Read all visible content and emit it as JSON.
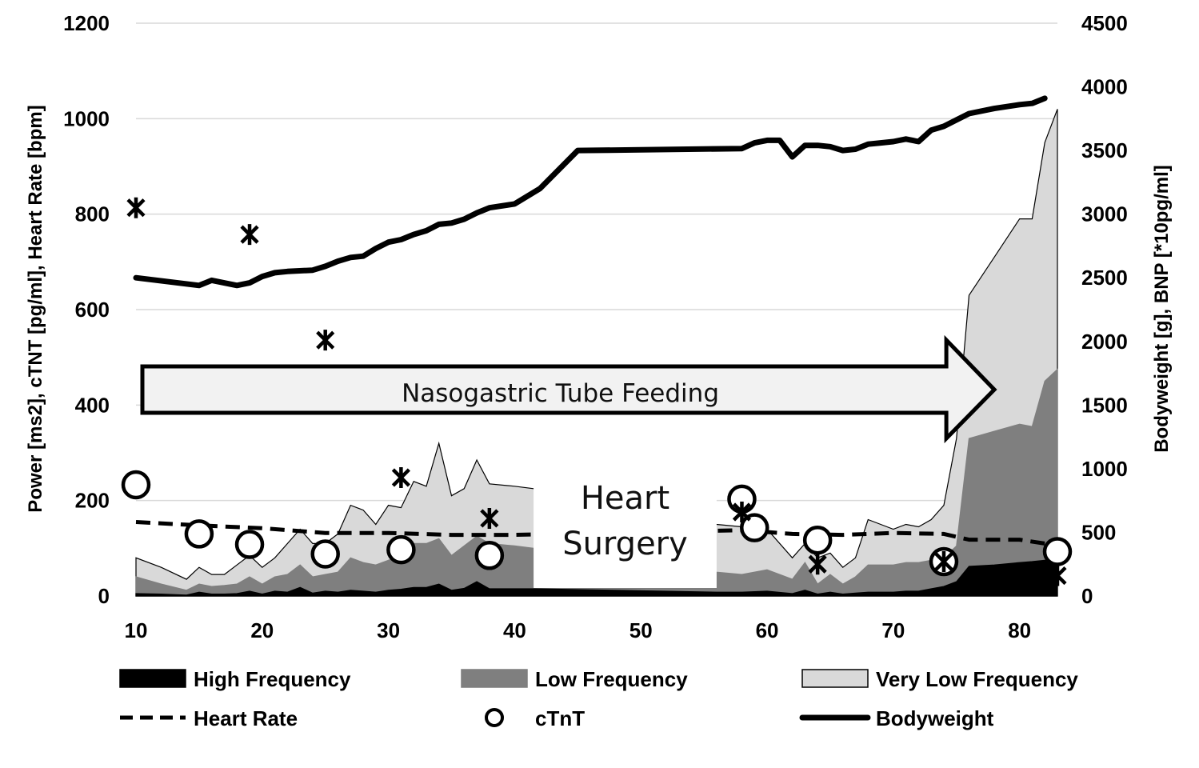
{
  "chart_data": {
    "type": "area",
    "title": "",
    "xlabel": "",
    "ylabel": "Power [ms2], cTNT [pg/ml], Heart Rate [bpm]",
    "ylabel_right": "Bodyweight [g], BNP [*10pg/ml]",
    "xlim": [
      10,
      83
    ],
    "xticks": [
      "10",
      "20",
      "30",
      "40",
      "50",
      "60",
      "70",
      "80"
    ],
    "ylim": [
      0,
      1200
    ],
    "yticks": [
      "0",
      "200",
      "400",
      "600",
      "800",
      "1000",
      "1200"
    ],
    "ylim_right": [
      0,
      4500
    ],
    "yticks_right": [
      "0",
      "500",
      "1000",
      "1500",
      "2000",
      "2500",
      "3000",
      "3500",
      "4000",
      "4500"
    ],
    "grid": true,
    "legend_position": "bottom",
    "annotations": {
      "arrow_label": "Nasogastric Tube Feeding",
      "arrow_start_x": 10,
      "arrow_end_x": 78,
      "surgery_line1": "Heart",
      "surgery_line2": "Surgery",
      "surgery_x_range": [
        41.5,
        56
      ]
    },
    "series": [
      {
        "name": "Very Low Frequency",
        "axis": "left",
        "style": "area",
        "color": "#d9d9d9",
        "x": [
          10,
          12,
          14,
          15,
          16,
          17,
          18,
          19,
          20,
          21,
          22,
          23,
          24,
          25,
          26,
          27,
          28,
          29,
          30,
          31,
          32,
          33,
          34,
          35,
          36,
          37,
          38,
          40,
          41.5,
          56,
          58,
          60,
          62,
          63,
          64,
          65,
          66,
          67,
          68,
          69,
          70,
          71,
          72,
          73,
          74,
          75,
          76,
          78,
          80,
          81,
          82,
          83
        ],
        "y": [
          80,
          60,
          35,
          60,
          45,
          45,
          65,
          85,
          60,
          80,
          110,
          140,
          110,
          110,
          130,
          190,
          180,
          150,
          190,
          185,
          240,
          230,
          320,
          210,
          225,
          285,
          235,
          230,
          225,
          150,
          145,
          140,
          80,
          110,
          80,
          90,
          60,
          80,
          160,
          150,
          140,
          150,
          145,
          160,
          190,
          330,
          630,
          710,
          790,
          790,
          950,
          1020
        ]
      },
      {
        "name": "Low Frequency",
        "axis": "left",
        "style": "area",
        "color": "#7f7f7f",
        "x": [
          10,
          12,
          14,
          15,
          16,
          17,
          18,
          19,
          20,
          21,
          22,
          23,
          24,
          25,
          26,
          27,
          28,
          29,
          30,
          31,
          32,
          33,
          34,
          35,
          36,
          37,
          38,
          40,
          41.5,
          56,
          58,
          60,
          62,
          63,
          64,
          65,
          66,
          67,
          68,
          69,
          70,
          71,
          72,
          73,
          74,
          75,
          76,
          78,
          80,
          81,
          82,
          83
        ],
        "y": [
          40,
          25,
          12,
          25,
          20,
          22,
          25,
          40,
          25,
          40,
          45,
          65,
          40,
          45,
          50,
          80,
          70,
          65,
          75,
          85,
          110,
          110,
          120,
          85,
          105,
          125,
          110,
          105,
          100,
          50,
          45,
          55,
          35,
          70,
          25,
          45,
          25,
          40,
          65,
          65,
          65,
          70,
          70,
          75,
          80,
          105,
          330,
          345,
          360,
          355,
          450,
          475
        ]
      },
      {
        "name": "High Frequency",
        "axis": "left",
        "style": "area",
        "color": "#000000",
        "x": [
          10,
          12,
          14,
          15,
          16,
          17,
          18,
          19,
          20,
          21,
          22,
          23,
          24,
          25,
          26,
          27,
          28,
          29,
          30,
          31,
          32,
          33,
          34,
          35,
          36,
          37,
          38,
          40,
          41.5,
          56,
          58,
          60,
          62,
          63,
          64,
          65,
          66,
          67,
          68,
          69,
          70,
          71,
          72,
          73,
          74,
          75,
          76,
          78,
          80,
          81,
          82,
          83
        ],
        "y": [
          5,
          4,
          2,
          8,
          4,
          4,
          5,
          10,
          4,
          10,
          8,
          18,
          6,
          10,
          8,
          12,
          10,
          8,
          12,
          14,
          18,
          18,
          25,
          12,
          16,
          30,
          15,
          15,
          15,
          8,
          8,
          10,
          5,
          12,
          4,
          8,
          4,
          6,
          8,
          8,
          8,
          10,
          10,
          15,
          20,
          30,
          62,
          65,
          70,
          72,
          75,
          78
        ]
      },
      {
        "name": "Heart Rate",
        "axis": "left",
        "style": "dashed-line",
        "color": "#000000",
        "x": [
          10,
          15,
          20,
          25,
          30,
          35,
          40,
          58,
          62,
          66,
          70,
          74,
          76,
          80,
          82,
          83
        ],
        "y": [
          155,
          148,
          142,
          132,
          132,
          128,
          128,
          138,
          130,
          128,
          132,
          130,
          118,
          118,
          110,
          108
        ]
      },
      {
        "name": "cTnT",
        "axis": "left",
        "style": "circle",
        "color": "#000000",
        "x": [
          10,
          15,
          19,
          25,
          31,
          38,
          58,
          59,
          64,
          74,
          83
        ],
        "y": [
          233,
          130,
          108,
          88,
          97,
          85,
          203,
          143,
          117,
          72,
          93
        ]
      },
      {
        "name": "Bodyweight",
        "axis": "right",
        "style": "line",
        "color": "#000000",
        "x": [
          10,
          15,
          16,
          18,
          19,
          20,
          21,
          22,
          24,
          25,
          26,
          27,
          28,
          29,
          30,
          31,
          32,
          33,
          34,
          35,
          36,
          37,
          38,
          40,
          42,
          45,
          50,
          58,
          59,
          60,
          61,
          62,
          63,
          64,
          65,
          66,
          67,
          68,
          69,
          70,
          71,
          72,
          73,
          74,
          75,
          76,
          78,
          80,
          81,
          82
        ],
        "y": [
          2500,
          2440,
          2480,
          2440,
          2460,
          2510,
          2540,
          2550,
          2560,
          2590,
          2630,
          2660,
          2670,
          2730,
          2780,
          2800,
          2840,
          2870,
          2920,
          2930,
          2960,
          3010,
          3050,
          3080,
          3200,
          3500,
          3505,
          3515,
          3560,
          3580,
          3580,
          3450,
          3540,
          3540,
          3530,
          3500,
          3510,
          3550,
          3560,
          3570,
          3590,
          3570,
          3660,
          3690,
          3740,
          3790,
          3830,
          3860,
          3870,
          3910
        ]
      },
      {
        "name": "BNP",
        "axis": "right",
        "style": "asterisk",
        "color": "#000000",
        "x": [
          10,
          19,
          25,
          31,
          38,
          58,
          64,
          74,
          83
        ],
        "y": [
          3050,
          2840,
          2010,
          930,
          610,
          660,
          250,
          270,
          160
        ]
      }
    ],
    "legend": [
      {
        "label": "High Frequency",
        "symbol": "fill-black"
      },
      {
        "label": "Low Frequency",
        "symbol": "fill-gray"
      },
      {
        "label": "Very Low Frequency",
        "symbol": "fill-light"
      },
      {
        "label": "Heart Rate",
        "symbol": "dashed"
      },
      {
        "label": "cTnT",
        "symbol": "circle"
      },
      {
        "label": "Bodyweight",
        "symbol": "line"
      }
    ]
  }
}
